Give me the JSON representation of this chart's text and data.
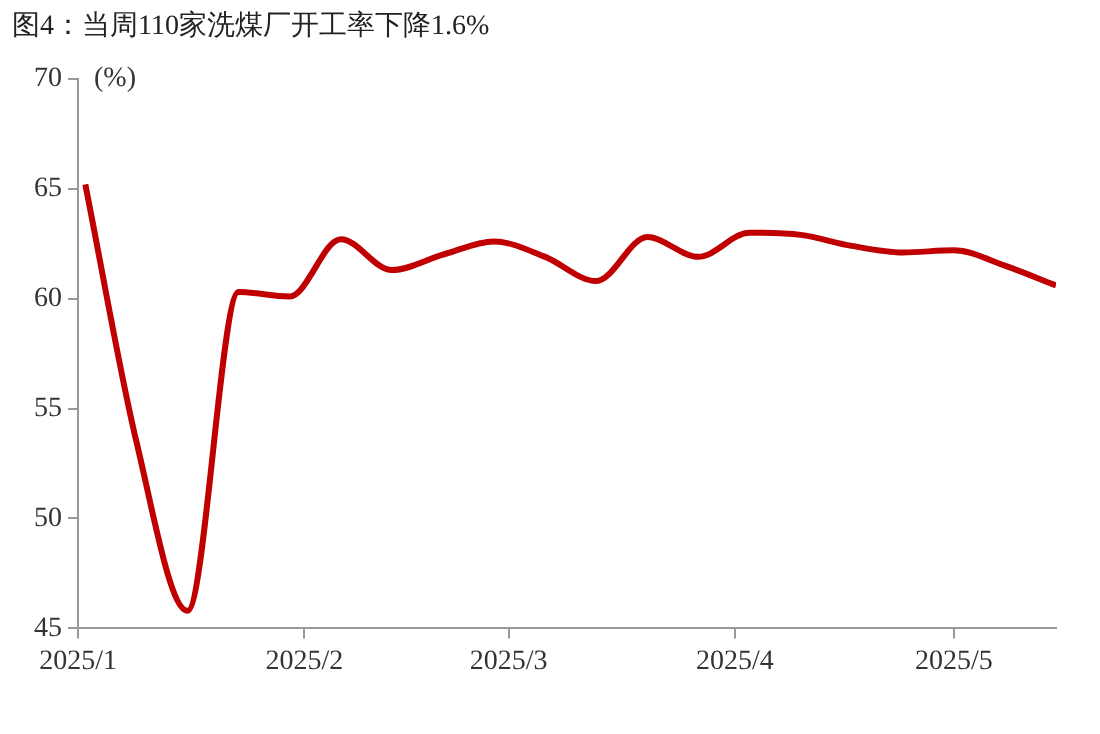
{
  "chart_data": {
    "type": "line",
    "title": "图4：当周110家洗煤厂开工率下降1.6%",
    "ylabel": "(%)",
    "x": [
      "2025-01-02",
      "2025-01-09",
      "2025-01-16",
      "2025-01-23",
      "2025-01-30",
      "2025-02-06",
      "2025-02-13",
      "2025-02-20",
      "2025-02-27",
      "2025-03-06",
      "2025-03-13",
      "2025-03-20",
      "2025-03-27",
      "2025-04-03",
      "2025-04-10",
      "2025-04-17",
      "2025-04-24",
      "2025-05-01",
      "2025-05-08",
      "2025-05-15"
    ],
    "series": [
      {
        "color": "#c00000",
        "values": [
          65.2,
          53.5,
          45.8,
          60.3,
          60.1,
          62.7,
          61.3,
          62.0,
          62.6,
          61.9,
          60.8,
          62.8,
          61.9,
          63.0,
          62.9,
          62.4,
          62.1,
          62.2,
          61.5,
          60.6
        ]
      }
    ],
    "xlim": [
      "2025-01-01",
      "2025-05-15"
    ],
    "xticks": [
      {
        "value": "2025-01-01",
        "label": "2025/1"
      },
      {
        "value": "2025-02-01",
        "label": "2025/2"
      },
      {
        "value": "2025-03-01",
        "label": "2025/3"
      },
      {
        "value": "2025-04-01",
        "label": "2025/4"
      },
      {
        "value": "2025-05-01",
        "label": "2025/5"
      }
    ],
    "ylim": [
      45,
      70
    ],
    "yticks": [
      45,
      50,
      55,
      60,
      65,
      70
    ],
    "grid": false,
    "legend": false,
    "marker": "none",
    "line_style": "solid"
  }
}
